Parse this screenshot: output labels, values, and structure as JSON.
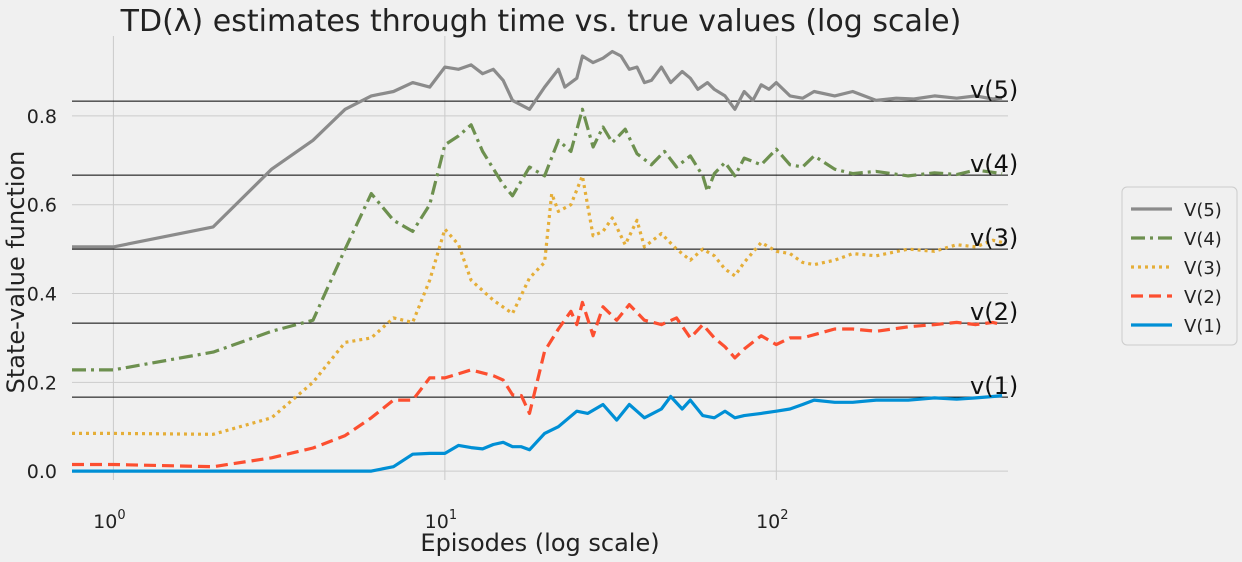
{
  "chart_data": {
    "type": "line",
    "title": "TD(λ) estimates through time vs. true values (log scale)",
    "xlabel": "Episodes (log scale)",
    "ylabel": "State-value function",
    "xscale": "log",
    "xlim": [
      0.75,
      500
    ],
    "ylim": [
      -0.02,
      0.98
    ],
    "x_ticks": [
      {
        "value": 1,
        "base": "10",
        "exp": "0"
      },
      {
        "value": 10,
        "base": "10",
        "exp": "1"
      },
      {
        "value": 100,
        "base": "10",
        "exp": "2"
      }
    ],
    "y_ticks": [
      {
        "value": 0.0,
        "label": "0.0"
      },
      {
        "value": 0.2,
        "label": "0.2"
      },
      {
        "value": 0.4,
        "label": "0.4"
      },
      {
        "value": 0.6,
        "label": "0.6"
      },
      {
        "value": 0.8,
        "label": "0.8"
      }
    ],
    "grid": true,
    "legend_position": "right",
    "true_values": [
      {
        "label": "v(5)",
        "value": 0.8333
      },
      {
        "label": "v(4)",
        "value": 0.6667
      },
      {
        "label": "v(3)",
        "value": 0.5
      },
      {
        "label": "v(2)",
        "value": 0.3333
      },
      {
        "label": "v(1)",
        "value": 0.1667
      }
    ],
    "series": [
      {
        "name": "V(5)",
        "color": "#8b8b8b",
        "dash": "solid",
        "points": [
          [
            0.75,
            0.505
          ],
          [
            1,
            0.505
          ],
          [
            2,
            0.55
          ],
          [
            3,
            0.68
          ],
          [
            4,
            0.745
          ],
          [
            5,
            0.815
          ],
          [
            6,
            0.845
          ],
          [
            7,
            0.855
          ],
          [
            8,
            0.875
          ],
          [
            9,
            0.865
          ],
          [
            10,
            0.91
          ],
          [
            11,
            0.905
          ],
          [
            12,
            0.915
          ],
          [
            13,
            0.895
          ],
          [
            14,
            0.905
          ],
          [
            15,
            0.88
          ],
          [
            16,
            0.835
          ],
          [
            18,
            0.815
          ],
          [
            20,
            0.865
          ],
          [
            22,
            0.905
          ],
          [
            23,
            0.865
          ],
          [
            25,
            0.885
          ],
          [
            26,
            0.935
          ],
          [
            28,
            0.92
          ],
          [
            30,
            0.93
          ],
          [
            32,
            0.945
          ],
          [
            34,
            0.935
          ],
          [
            36,
            0.905
          ],
          [
            38,
            0.91
          ],
          [
            40,
            0.875
          ],
          [
            42,
            0.88
          ],
          [
            45,
            0.91
          ],
          [
            48,
            0.875
          ],
          [
            52,
            0.9
          ],
          [
            55,
            0.885
          ],
          [
            58,
            0.86
          ],
          [
            62,
            0.875
          ],
          [
            65,
            0.86
          ],
          [
            70,
            0.845
          ],
          [
            75,
            0.815
          ],
          [
            80,
            0.855
          ],
          [
            85,
            0.835
          ],
          [
            90,
            0.87
          ],
          [
            95,
            0.86
          ],
          [
            100,
            0.875
          ],
          [
            110,
            0.845
          ],
          [
            120,
            0.84
          ],
          [
            130,
            0.855
          ],
          [
            150,
            0.845
          ],
          [
            170,
            0.855
          ],
          [
            200,
            0.835
          ],
          [
            230,
            0.84
          ],
          [
            260,
            0.838
          ],
          [
            300,
            0.845
          ],
          [
            350,
            0.84
          ],
          [
            400,
            0.845
          ],
          [
            450,
            0.838
          ],
          [
            480,
            0.84
          ]
        ]
      },
      {
        "name": "V(4)",
        "color": "#6d904f",
        "dash": "dashdot",
        "points": [
          [
            0.75,
            0.228
          ],
          [
            1,
            0.228
          ],
          [
            2,
            0.268
          ],
          [
            3,
            0.315
          ],
          [
            4,
            0.34
          ],
          [
            5,
            0.5
          ],
          [
            6,
            0.625
          ],
          [
            7,
            0.565
          ],
          [
            8,
            0.54
          ],
          [
            9,
            0.6
          ],
          [
            10,
            0.735
          ],
          [
            11,
            0.755
          ],
          [
            12,
            0.78
          ],
          [
            13,
            0.72
          ],
          [
            15,
            0.645
          ],
          [
            16,
            0.62
          ],
          [
            18,
            0.685
          ],
          [
            20,
            0.665
          ],
          [
            22,
            0.745
          ],
          [
            24,
            0.72
          ],
          [
            26,
            0.815
          ],
          [
            28,
            0.73
          ],
          [
            30,
            0.775
          ],
          [
            32,
            0.74
          ],
          [
            35,
            0.77
          ],
          [
            38,
            0.715
          ],
          [
            42,
            0.69
          ],
          [
            46,
            0.72
          ],
          [
            50,
            0.685
          ],
          [
            55,
            0.71
          ],
          [
            60,
            0.665
          ],
          [
            62,
            0.63
          ],
          [
            65,
            0.67
          ],
          [
            70,
            0.695
          ],
          [
            75,
            0.665
          ],
          [
            80,
            0.705
          ],
          [
            90,
            0.69
          ],
          [
            100,
            0.725
          ],
          [
            110,
            0.69
          ],
          [
            120,
            0.685
          ],
          [
            130,
            0.71
          ],
          [
            150,
            0.68
          ],
          [
            170,
            0.67
          ],
          [
            200,
            0.675
          ],
          [
            250,
            0.665
          ],
          [
            300,
            0.672
          ],
          [
            350,
            0.668
          ],
          [
            400,
            0.678
          ],
          [
            450,
            0.673
          ],
          [
            480,
            0.67
          ]
        ]
      },
      {
        "name": "V(3)",
        "color": "#e5ae38",
        "dash": "dotted",
        "points": [
          [
            0.75,
            0.085
          ],
          [
            1,
            0.085
          ],
          [
            2,
            0.083
          ],
          [
            3,
            0.12
          ],
          [
            4,
            0.2
          ],
          [
            5,
            0.29
          ],
          [
            6,
            0.3
          ],
          [
            7,
            0.345
          ],
          [
            8,
            0.335
          ],
          [
            9,
            0.43
          ],
          [
            10,
            0.545
          ],
          [
            11,
            0.51
          ],
          [
            12,
            0.43
          ],
          [
            14,
            0.385
          ],
          [
            16,
            0.355
          ],
          [
            18,
            0.435
          ],
          [
            20,
            0.47
          ],
          [
            21,
            0.625
          ],
          [
            22,
            0.585
          ],
          [
            24,
            0.6
          ],
          [
            26,
            0.665
          ],
          [
            28,
            0.53
          ],
          [
            30,
            0.54
          ],
          [
            32,
            0.57
          ],
          [
            35,
            0.51
          ],
          [
            38,
            0.565
          ],
          [
            40,
            0.505
          ],
          [
            45,
            0.535
          ],
          [
            50,
            0.5
          ],
          [
            55,
            0.475
          ],
          [
            60,
            0.5
          ],
          [
            65,
            0.485
          ],
          [
            70,
            0.455
          ],
          [
            75,
            0.44
          ],
          [
            80,
            0.47
          ],
          [
            90,
            0.515
          ],
          [
            100,
            0.495
          ],
          [
            110,
            0.49
          ],
          [
            120,
            0.47
          ],
          [
            130,
            0.465
          ],
          [
            150,
            0.475
          ],
          [
            170,
            0.49
          ],
          [
            200,
            0.485
          ],
          [
            250,
            0.5
          ],
          [
            300,
            0.495
          ],
          [
            350,
            0.51
          ],
          [
            400,
            0.505
          ],
          [
            450,
            0.52
          ],
          [
            480,
            0.515
          ]
        ]
      },
      {
        "name": "V(2)",
        "color": "#fc4f30",
        "dash": "dashed",
        "points": [
          [
            0.75,
            0.015
          ],
          [
            1,
            0.015
          ],
          [
            2,
            0.01
          ],
          [
            3,
            0.03
          ],
          [
            4,
            0.052
          ],
          [
            5,
            0.08
          ],
          [
            6,
            0.12
          ],
          [
            7,
            0.16
          ],
          [
            8,
            0.16
          ],
          [
            9,
            0.21
          ],
          [
            10,
            0.21
          ],
          [
            12,
            0.228
          ],
          [
            14,
            0.215
          ],
          [
            15,
            0.205
          ],
          [
            16,
            0.172
          ],
          [
            17,
            0.17
          ],
          [
            18,
            0.13
          ],
          [
            20,
            0.27
          ],
          [
            22,
            0.32
          ],
          [
            24,
            0.36
          ],
          [
            25,
            0.33
          ],
          [
            26,
            0.38
          ],
          [
            28,
            0.305
          ],
          [
            30,
            0.37
          ],
          [
            33,
            0.34
          ],
          [
            36,
            0.375
          ],
          [
            40,
            0.34
          ],
          [
            45,
            0.33
          ],
          [
            50,
            0.345
          ],
          [
            55,
            0.3
          ],
          [
            60,
            0.33
          ],
          [
            65,
            0.3
          ],
          [
            70,
            0.28
          ],
          [
            75,
            0.255
          ],
          [
            80,
            0.275
          ],
          [
            90,
            0.305
          ],
          [
            100,
            0.285
          ],
          [
            110,
            0.3
          ],
          [
            120,
            0.3
          ],
          [
            150,
            0.32
          ],
          [
            170,
            0.32
          ],
          [
            200,
            0.315
          ],
          [
            250,
            0.325
          ],
          [
            300,
            0.33
          ],
          [
            350,
            0.335
          ],
          [
            400,
            0.33
          ],
          [
            450,
            0.335
          ],
          [
            480,
            0.33
          ]
        ]
      },
      {
        "name": "V(1)",
        "color": "#008fd5",
        "dash": "solid",
        "points": [
          [
            0.75,
            0.0
          ],
          [
            1,
            0.0
          ],
          [
            2,
            0.0
          ],
          [
            3,
            0.0
          ],
          [
            4,
            0.0
          ],
          [
            5,
            0.0
          ],
          [
            6,
            0.0
          ],
          [
            7,
            0.01
          ],
          [
            8,
            0.038
          ],
          [
            9,
            0.04
          ],
          [
            10,
            0.04
          ],
          [
            11,
            0.058
          ],
          [
            12,
            0.053
          ],
          [
            13,
            0.05
          ],
          [
            14,
            0.06
          ],
          [
            15,
            0.065
          ],
          [
            16,
            0.055
          ],
          [
            17,
            0.055
          ],
          [
            18,
            0.048
          ],
          [
            20,
            0.085
          ],
          [
            22,
            0.1
          ],
          [
            25,
            0.135
          ],
          [
            27,
            0.13
          ],
          [
            30,
            0.15
          ],
          [
            33,
            0.115
          ],
          [
            36,
            0.15
          ],
          [
            40,
            0.12
          ],
          [
            45,
            0.14
          ],
          [
            48,
            0.168
          ],
          [
            52,
            0.14
          ],
          [
            55,
            0.16
          ],
          [
            60,
            0.125
          ],
          [
            65,
            0.12
          ],
          [
            70,
            0.135
          ],
          [
            75,
            0.12
          ],
          [
            80,
            0.125
          ],
          [
            90,
            0.13
          ],
          [
            100,
            0.135
          ],
          [
            110,
            0.14
          ],
          [
            120,
            0.15
          ],
          [
            130,
            0.16
          ],
          [
            150,
            0.155
          ],
          [
            170,
            0.155
          ],
          [
            200,
            0.16
          ],
          [
            250,
            0.16
          ],
          [
            300,
            0.165
          ],
          [
            350,
            0.162
          ],
          [
            400,
            0.165
          ],
          [
            450,
            0.168
          ],
          [
            480,
            0.17
          ]
        ]
      }
    ]
  }
}
